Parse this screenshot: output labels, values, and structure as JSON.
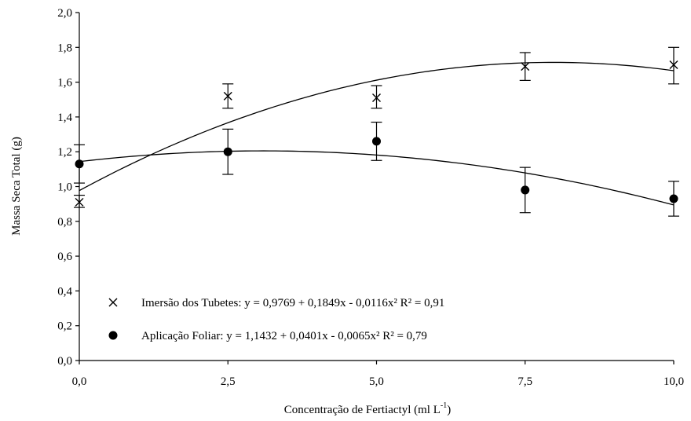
{
  "chart_data": {
    "type": "scatter",
    "xlabel": "Concentração de Fertiactyl (ml L",
    "xlabel_sup": "-1",
    "xlabel_end": ")",
    "ylabel": "Massa Seca Total (g)",
    "xlim": [
      0,
      10
    ],
    "ylim": [
      0,
      2
    ],
    "xticks": [
      0,
      2.5,
      5,
      7.5,
      10
    ],
    "xtick_labels": [
      "0,0",
      "2,5",
      "5,0",
      "7,5",
      "10,0"
    ],
    "yticks": [
      0,
      0.2,
      0.4,
      0.6,
      0.8,
      1.0,
      1.2,
      1.4,
      1.6,
      1.8,
      2.0
    ],
    "ytick_labels": [
      "0,0",
      "0,2",
      "0,4",
      "0,6",
      "0,8",
      "1,0",
      "1,2",
      "1,4",
      "1,6",
      "1,8",
      "2,0"
    ],
    "grid": false,
    "legend_position": "bottom-left",
    "series": [
      {
        "name": "Imersão dos Tubetes: y = 0,9769 + 0,1849x - 0,0116x²  R² = 0,91",
        "marker": "x",
        "x": [
          0,
          2.5,
          5,
          7.5,
          10
        ],
        "y": [
          0.91,
          1.52,
          1.51,
          1.69,
          1.7
        ],
        "err_low": [
          0.88,
          1.45,
          1.45,
          1.61,
          1.59
        ],
        "err_high": [
          0.95,
          1.59,
          1.58,
          1.77,
          1.8
        ],
        "fit": [
          0.9769,
          0.1849,
          -0.0116
        ]
      },
      {
        "name": "Aplicação Foliar: y = 1,1432 + 0,0401x - 0,0065x²  R² = 0,79",
        "marker": "circle",
        "x": [
          0,
          2.5,
          5,
          7.5,
          10
        ],
        "y": [
          1.13,
          1.2,
          1.26,
          0.98,
          0.93
        ],
        "err_low": [
          1.02,
          1.07,
          1.15,
          0.85,
          0.83
        ],
        "err_high": [
          1.24,
          1.33,
          1.37,
          1.11,
          1.03
        ],
        "fit": [
          1.1432,
          0.0401,
          -0.0065
        ]
      }
    ]
  }
}
